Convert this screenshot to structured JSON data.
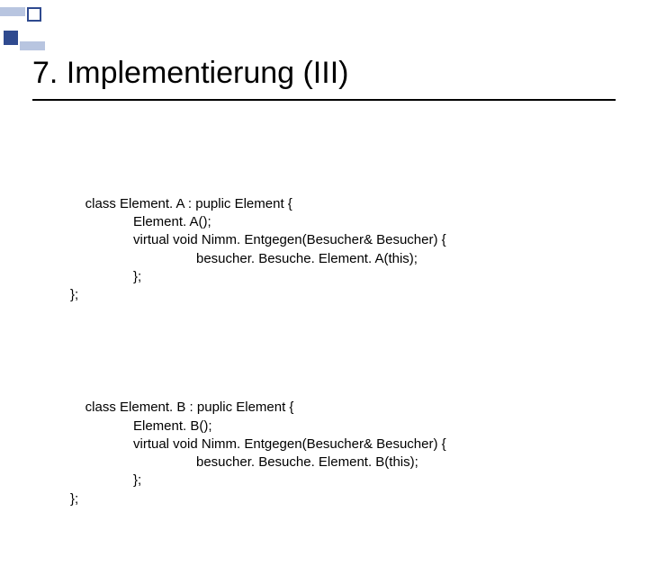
{
  "deco": {
    "outline_color": "#2f4a8f",
    "solid_color": "#2f4a8f",
    "bar_color": "#b8c5e0"
  },
  "title": "7. Implementierung (III)",
  "blockA": {
    "l1": "class Element. A : puplic Element {",
    "l2": "Element. A();",
    "l3": "virtual void Nimm. Entgegen(Besucher& Besucher) {",
    "l4": "besucher. Besuche. Element. A(this);",
    "l5": "};",
    "l6": "};"
  },
  "blockB": {
    "l1": "class Element. B : puplic Element {",
    "l2": "Element. B();",
    "l3": "virtual void Nimm. Entgegen(Besucher& Besucher) {",
    "l4": "besucher. Besuche. Element. B(this);",
    "l5": "};",
    "l6": "};"
  }
}
